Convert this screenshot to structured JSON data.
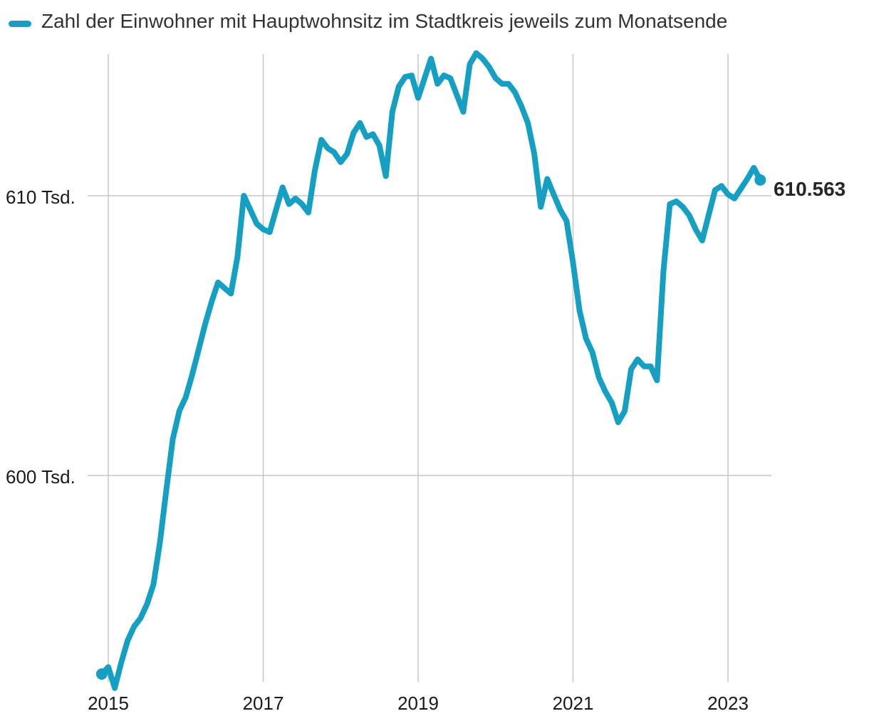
{
  "legend": {
    "label": "Zahl der Einwohner mit Hauptwohnsitz im Stadtkreis jeweils zum Monatsende"
  },
  "colors": {
    "line": "#149fc3",
    "grid": "#c5c5c5",
    "background": "#ffffff",
    "legend_text": "#333333",
    "axis_text": "#1a1a1a",
    "end_label_text": "#262626"
  },
  "chart_data": {
    "type": "line",
    "title": "Zahl der Einwohner mit Hauptwohnsitz im Stadtkreis jeweils zum Monatsende",
    "unit": "Tsd.",
    "xlabel": "",
    "ylabel": "",
    "grid": true,
    "legend_position": "top-left",
    "markers": "first-and-last-point",
    "xrange": [
      "2014-12",
      "2023-06"
    ],
    "ylim": [
      592.3,
      615.2
    ],
    "end_label": "610.563",
    "end_value": 610.563,
    "yticks": [
      {
        "value": 610,
        "label": "610 Tsd."
      },
      {
        "value": 600,
        "label": "600 Tsd."
      }
    ],
    "xticks": [
      {
        "index": 1,
        "label": "2015"
      },
      {
        "index": 25,
        "label": "2017"
      },
      {
        "index": 49,
        "label": "2019"
      },
      {
        "index": 73,
        "label": "2021"
      },
      {
        "index": 97,
        "label": "2023"
      }
    ],
    "points": [
      [
        "2014-12",
        592.9
      ],
      [
        "2015-01",
        593.15
      ],
      [
        "2015-02",
        592.4
      ],
      [
        "2015-03",
        593.3
      ],
      [
        "2015-04",
        594.1
      ],
      [
        "2015-05",
        594.6
      ],
      [
        "2015-06",
        594.9
      ],
      [
        "2015-07",
        595.4
      ],
      [
        "2015-08",
        596.1
      ],
      [
        "2015-09",
        597.6
      ],
      [
        "2015-10",
        599.5
      ],
      [
        "2015-11",
        601.3
      ],
      [
        "2015-12",
        602.3
      ],
      [
        "2016-01",
        602.8
      ],
      [
        "2016-02",
        603.6
      ],
      [
        "2016-03",
        604.5
      ],
      [
        "2016-04",
        605.4
      ],
      [
        "2016-05",
        606.2
      ],
      [
        "2016-06",
        606.9
      ],
      [
        "2016-07",
        606.7
      ],
      [
        "2016-08",
        606.5
      ],
      [
        "2016-09",
        607.8
      ],
      [
        "2016-10",
        610.0
      ],
      [
        "2016-11",
        609.5
      ],
      [
        "2016-12",
        609.0
      ],
      [
        "2017-01",
        608.8
      ],
      [
        "2017-02",
        608.7
      ],
      [
        "2017-03",
        609.5
      ],
      [
        "2017-04",
        610.3
      ],
      [
        "2017-05",
        609.7
      ],
      [
        "2017-06",
        609.9
      ],
      [
        "2017-07",
        609.7
      ],
      [
        "2017-08",
        609.4
      ],
      [
        "2017-09",
        610.9
      ],
      [
        "2017-10",
        612.0
      ],
      [
        "2017-11",
        611.7
      ],
      [
        "2017-12",
        611.55
      ],
      [
        "2018-01",
        611.2
      ],
      [
        "2018-02",
        611.5
      ],
      [
        "2018-03",
        612.25
      ],
      [
        "2018-04",
        612.6
      ],
      [
        "2018-05",
        612.1
      ],
      [
        "2018-06",
        612.2
      ],
      [
        "2018-07",
        611.8
      ],
      [
        "2018-08",
        610.7
      ],
      [
        "2018-09",
        613.0
      ],
      [
        "2018-10",
        613.9
      ],
      [
        "2018-11",
        614.25
      ],
      [
        "2018-12",
        614.3
      ],
      [
        "2019-01",
        613.5
      ],
      [
        "2019-02",
        614.2
      ],
      [
        "2019-03",
        614.9
      ],
      [
        "2019-04",
        614.0
      ],
      [
        "2019-05",
        614.3
      ],
      [
        "2019-06",
        614.2
      ],
      [
        "2019-07",
        613.6
      ],
      [
        "2019-08",
        613.0
      ],
      [
        "2019-09",
        614.7
      ],
      [
        "2019-10",
        615.1
      ],
      [
        "2019-11",
        614.9
      ],
      [
        "2019-12",
        614.6
      ],
      [
        "2020-01",
        614.2
      ],
      [
        "2020-02",
        614.0
      ],
      [
        "2020-03",
        614.0
      ],
      [
        "2020-04",
        613.7
      ],
      [
        "2020-05",
        613.2
      ],
      [
        "2020-06",
        612.6
      ],
      [
        "2020-07",
        611.5
      ],
      [
        "2020-08",
        609.6
      ],
      [
        "2020-09",
        610.6
      ],
      [
        "2020-10",
        610.05
      ],
      [
        "2020-11",
        609.5
      ],
      [
        "2020-12",
        609.1
      ],
      [
        "2021-01",
        607.6
      ],
      [
        "2021-02",
        605.9
      ],
      [
        "2021-03",
        604.9
      ],
      [
        "2021-04",
        604.4
      ],
      [
        "2021-05",
        603.5
      ],
      [
        "2021-06",
        603.0
      ],
      [
        "2021-07",
        602.6
      ],
      [
        "2021-08",
        601.9
      ],
      [
        "2021-09",
        602.3
      ],
      [
        "2021-10",
        603.8
      ],
      [
        "2021-11",
        604.15
      ],
      [
        "2021-12",
        603.9
      ],
      [
        "2022-01",
        603.9
      ],
      [
        "2022-02",
        603.4
      ],
      [
        "2022-03",
        607.3
      ],
      [
        "2022-04",
        609.7
      ],
      [
        "2022-05",
        609.8
      ],
      [
        "2022-06",
        609.6
      ],
      [
        "2022-07",
        609.3
      ],
      [
        "2022-08",
        608.8
      ],
      [
        "2022-09",
        608.4
      ],
      [
        "2022-10",
        609.3
      ],
      [
        "2022-11",
        610.2
      ],
      [
        "2022-12",
        610.35
      ],
      [
        "2023-01",
        610.05
      ],
      [
        "2023-02",
        609.9
      ],
      [
        "2023-03",
        610.25
      ],
      [
        "2023-04",
        610.6
      ],
      [
        "2023-05",
        611.0
      ],
      [
        "2023-06",
        610.563
      ]
    ]
  }
}
